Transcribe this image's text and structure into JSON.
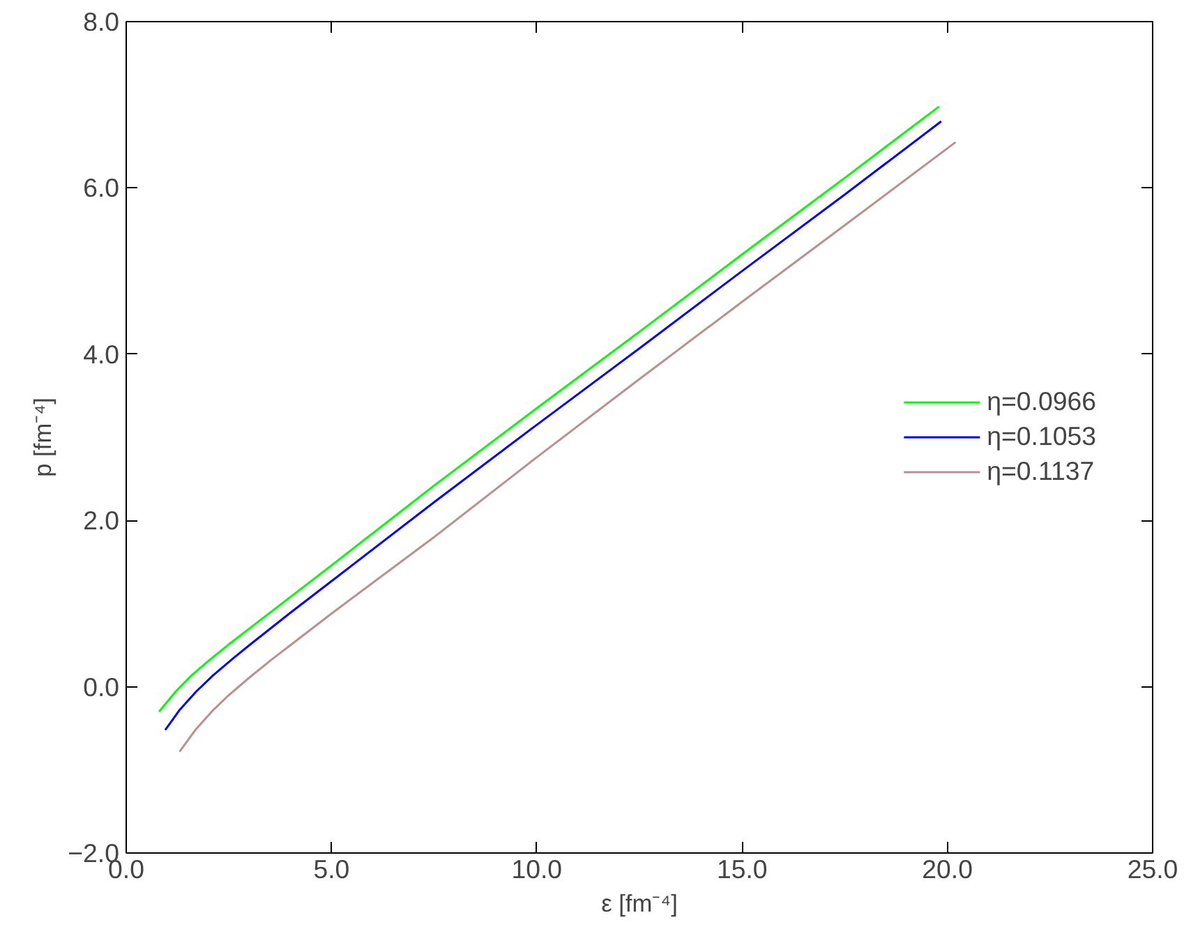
{
  "chart_data": {
    "type": "line",
    "xlabel": "ε [fm⁻⁴]",
    "ylabel": "p [fm⁻⁴]",
    "xlim": [
      0,
      25
    ],
    "ylim": [
      -2,
      8
    ],
    "xticks": [
      {
        "value": 0,
        "label": "0.0"
      },
      {
        "value": 5,
        "label": "5.0"
      },
      {
        "value": 10,
        "label": "10.0"
      },
      {
        "value": 15,
        "label": "15.0"
      },
      {
        "value": 20,
        "label": "20.0"
      },
      {
        "value": 25,
        "label": "25.0"
      }
    ],
    "yticks": [
      {
        "value": -2,
        "label": "−2.0"
      },
      {
        "value": 0,
        "label": "0.0"
      },
      {
        "value": 2,
        "label": "2.0"
      },
      {
        "value": 4,
        "label": "4.0"
      },
      {
        "value": 6,
        "label": "6.0"
      },
      {
        "value": 8,
        "label": "8.0"
      }
    ],
    "grid": false,
    "legend": "right",
    "line_style": "solid",
    "series": [
      {
        "name": "η=0.0966",
        "color": "#00ff00",
        "x": [
          0.8,
          1.2,
          1.6,
          2.0,
          2.5,
          3.0,
          4.0,
          5.0,
          7.5,
          10.0,
          12.5,
          15.0,
          17.5,
          19.8
        ],
        "values": [
          -0.3,
          -0.06,
          0.14,
          0.31,
          0.51,
          0.7,
          1.08,
          1.46,
          2.42,
          3.35,
          4.27,
          5.2,
          6.12,
          6.98
        ]
      },
      {
        "name": "η=0.1053",
        "color": "#0000ff",
        "x": [
          0.95,
          1.3,
          1.7,
          2.1,
          2.6,
          3.0,
          4.0,
          5.0,
          7.5,
          10.0,
          12.5,
          15.0,
          17.5,
          19.85
        ],
        "values": [
          -0.52,
          -0.28,
          -0.06,
          0.13,
          0.34,
          0.5,
          0.89,
          1.27,
          2.22,
          3.15,
          4.07,
          5.0,
          5.92,
          6.8
        ]
      },
      {
        "name": "η=0.1137",
        "color": "#bc8f8f",
        "x": [
          1.3,
          1.7,
          2.1,
          2.5,
          3.0,
          3.5,
          4.0,
          5.0,
          7.5,
          10.0,
          12.5,
          15.0,
          17.5,
          20.2
        ],
        "values": [
          -0.78,
          -0.51,
          -0.29,
          -0.1,
          0.11,
          0.31,
          0.5,
          0.88,
          1.8,
          2.76,
          3.7,
          4.63,
          5.55,
          6.55
        ]
      }
    ]
  }
}
